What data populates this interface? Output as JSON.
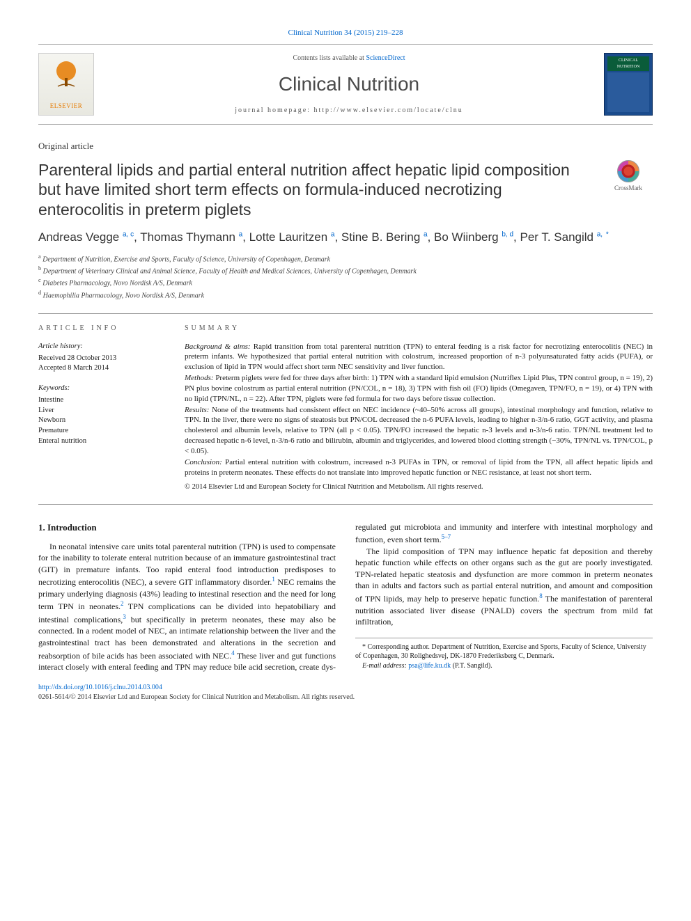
{
  "top_citation": "Clinical Nutrition 34 (2015) 219–228",
  "header": {
    "contents_prefix": "Contents lists available at ",
    "contents_link": "ScienceDirect",
    "journal_title": "Clinical Nutrition",
    "homepage_label": "journal homepage: ",
    "homepage_url": "http://www.elsevier.com/locate/clnu",
    "elsevier_label": "ELSEVIER",
    "cover_label": "CLINICAL NUTRITION"
  },
  "article_type": "Original article",
  "title": "Parenteral lipids and partial enteral nutrition affect hepatic lipid composition but have limited short term effects on formula-induced necrotizing enterocolitis in preterm piglets",
  "crossmark_label": "CrossMark",
  "authors_html": "Andreas Vegge <sup>a, c</sup>, Thomas Thymann <sup>a</sup>, Lotte Lauritzen <sup>a</sup>, Stine B. Bering <sup>a</sup>, Bo Wiinberg <sup>b, d</sup>, Per T. Sangild <sup>a,</sup> <sup class=\"ast\">*</sup>",
  "affiliations": [
    {
      "sup": "a",
      "text": "Department of Nutrition, Exercise and Sports, Faculty of Science, University of Copenhagen, Denmark"
    },
    {
      "sup": "b",
      "text": "Department of Veterinary Clinical and Animal Science, Faculty of Health and Medical Sciences, University of Copenhagen, Denmark"
    },
    {
      "sup": "c",
      "text": "Diabetes Pharmacology, Novo Nordisk A/S, Denmark"
    },
    {
      "sup": "d",
      "text": "Haemophilia Pharmacology, Novo Nordisk A/S, Denmark"
    }
  ],
  "article_info": {
    "heading": "ARTICLE INFO",
    "history_label": "Article history:",
    "received": "Received 28 October 2013",
    "accepted": "Accepted 8 March 2014",
    "keywords_label": "Keywords:",
    "keywords": [
      "Intestine",
      "Liver",
      "Newborn",
      "Premature",
      "Enteral nutrition"
    ]
  },
  "summary": {
    "heading": "SUMMARY",
    "background_label": "Background & aims:",
    "background": " Rapid transition from total parenteral nutrition (TPN) to enteral feeding is a risk factor for necrotizing enterocolitis (NEC) in preterm infants. We hypothesized that partial enteral nutrition with colostrum, increased proportion of n-3 polyunsaturated fatty acids (PUFA), or exclusion of lipid in TPN would affect short term NEC sensitivity and liver function.",
    "methods_label": "Methods:",
    "methods": " Preterm piglets were fed for three days after birth: 1) TPN with a standard lipid emulsion (Nutriflex Lipid Plus, TPN control group, n = 19), 2) PN plus bovine colostrum as partial enteral nutrition (PN/COL, n = 18), 3) TPN with fish oil (FO) lipids (Omegaven, TPN/FO, n = 19), or 4) TPN with no lipid (TPN/NL, n = 22). After TPN, piglets were fed formula for two days before tissue collection.",
    "results_label": "Results:",
    "results": " None of the treatments had consistent effect on NEC incidence (~40–50% across all groups), intestinal morphology and function, relative to TPN. In the liver, there were no signs of steatosis but PN/COL decreased the n-6 PUFA levels, leading to higher n-3/n-6 ratio, GGT activity, and plasma cholesterol and albumin levels, relative to TPN (all p < 0.05). TPN/FO increased the hepatic n-3 levels and n-3/n-6 ratio. TPN/NL treatment led to decreased hepatic n-6 level, n-3/n-6 ratio and bilirubin, albumin and triglycerides, and lowered blood clotting strength (−30%, TPN/NL vs. TPN/COL, p < 0.05).",
    "conclusion_label": "Conclusion:",
    "conclusion": " Partial enteral nutrition with colostrum, increased n-3 PUFAs in TPN, or removal of lipid from the TPN, all affect hepatic lipids and proteins in preterm neonates. These effects do not translate into improved hepatic function or NEC resistance, at least not short term.",
    "copyright": "© 2014 Elsevier Ltd and European Society for Clinical Nutrition and Metabolism. All rights reserved."
  },
  "body": {
    "section_heading": "1.  Introduction",
    "p1": "In neonatal intensive care units total parenteral nutrition (TPN) is used to compensate for the inability to tolerate enteral nutrition because of an immature gastrointestinal tract (GIT) in premature infants. Too rapid enteral food introduction predisposes to necrotizing enterocolitis (NEC), a severe GIT inflammatory disorder.",
    "p1_ref": "1",
    "p1b": " NEC remains the primary underlying diagnosis (43%) leading to intestinal resection and the need for long term TPN in neonates.",
    "p1b_ref": "2",
    "p1c": " TPN complications can be divided into hepatobiliary and intestinal complications,",
    "p1c_ref": "3",
    "p1d": " but specifically in preterm neonates, these may also ",
    "p2a": "be connected. In a rodent model of NEC, an intimate relationship between the liver and the gastrointestinal tract has been demonstrated and alterations in the secretion and reabsorption of bile acids has been associated with NEC.",
    "p2a_ref": "4",
    "p2b": " These liver and gut functions interact closely with enteral feeding and TPN may reduce bile acid secretion, create dys-regulated gut microbiota and immunity and interfere with intestinal morphology and function, even short term.",
    "p2b_ref": "5–7",
    "p3": "The lipid composition of TPN may influence hepatic fat deposition and thereby hepatic function while effects on other organs such as the gut are poorly investigated. TPN-related hepatic steatosis and dysfunction are more common in preterm neonates than in adults and factors such as partial enteral nutrition, and amount and composition of TPN lipids, may help to preserve hepatic function.",
    "p3_ref": "8",
    "p3b": " The manifestation of parenteral nutrition associated liver disease (PNALD) covers the spectrum from mild fat infiltration,"
  },
  "correspondence": {
    "star": "*",
    "text": " Corresponding author. Department of Nutrition, Exercise and Sports, Faculty of Science, University of Copenhagen, 30 Rolighedsvej, DK-1870 Frederiksberg C, Denmark.",
    "email_label": "E-mail address: ",
    "email": "psa@life.ku.dk",
    "email_suffix": " (P.T. Sangild)."
  },
  "footer": {
    "doi": "http://dx.doi.org/10.1016/j.clnu.2014.03.004",
    "issn_cp": "0261-5614/© 2014 Elsevier Ltd and European Society for Clinical Nutrition and Metabolism. All rights reserved."
  }
}
